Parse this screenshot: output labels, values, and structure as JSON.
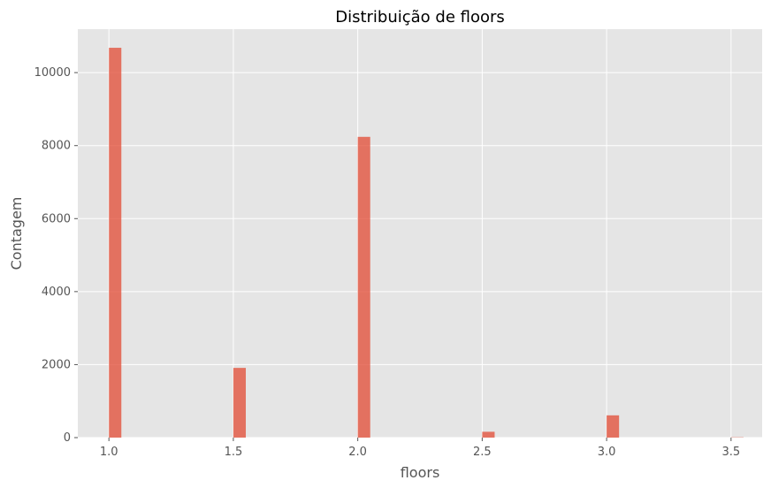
{
  "chart_data": {
    "type": "bar",
    "title": "Distribuição de floors",
    "xlabel": "floors",
    "ylabel": "Contagem",
    "x_ticks": [
      "1.0",
      "1.5",
      "2.0",
      "2.5",
      "3.0",
      "3.5"
    ],
    "y_ticks": [
      "0",
      "2000",
      "4000",
      "6000",
      "8000",
      "10000"
    ],
    "xlim": [
      0.875,
      3.625
    ],
    "ylim": [
      0,
      11190
    ],
    "bin_width": 0.05,
    "bins": [
      {
        "x": 1.0,
        "count": 10680
      },
      {
        "x": 1.5,
        "count": 1910
      },
      {
        "x": 2.0,
        "count": 8240
      },
      {
        "x": 2.5,
        "count": 160
      },
      {
        "x": 3.0,
        "count": 610
      },
      {
        "x": 3.5,
        "count": 8
      }
    ],
    "grid": true,
    "colors": {
      "bar": "#E24A33",
      "plot_background": "#E5E5E5",
      "grid": "#FFFFFF",
      "text": "#555555"
    }
  }
}
